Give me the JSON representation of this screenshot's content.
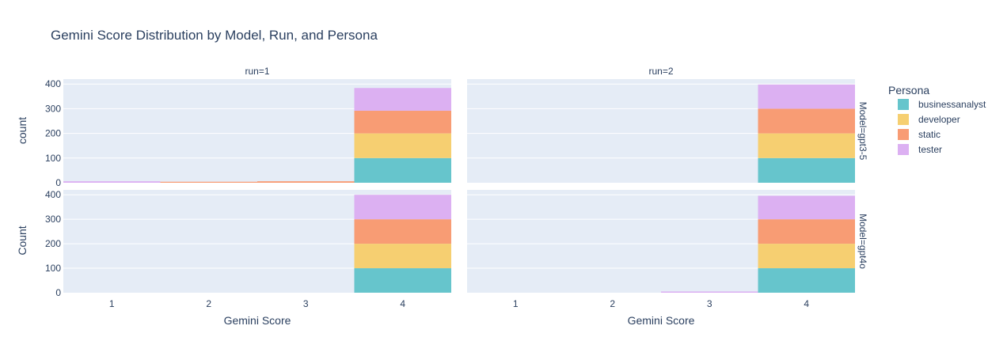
{
  "chart_data": {
    "type": "bar",
    "title": "Gemini Score Distribution by Model, Run, and Persona",
    "xlabel": "Gemini Score",
    "ylabels": [
      "count",
      "Count"
    ],
    "categories": [
      "1",
      "2",
      "3",
      "4"
    ],
    "ylim": [
      0,
      420
    ],
    "yticks": [
      "0",
      "100",
      "200",
      "300",
      "400"
    ],
    "legend": {
      "title": "Persona",
      "placement": "right"
    },
    "series_meta": [
      {
        "name": "businessanalyst",
        "color": "#66c5cc"
      },
      {
        "name": "developer",
        "color": "#f6cf71"
      },
      {
        "name": "static",
        "color": "#f89c74"
      },
      {
        "name": "tester",
        "color": "#dcb0f2"
      }
    ],
    "facets": [
      {
        "col_label": "run=1",
        "row_label": "",
        "model": "gpt3-5",
        "run": 1,
        "values": {
          "businessanalyst": [
            0,
            0,
            0,
            100
          ],
          "developer": [
            0,
            0,
            0,
            100
          ],
          "static": [
            0,
            4,
            6,
            92
          ],
          "tester": [
            6,
            0,
            0,
            92
          ]
        }
      },
      {
        "col_label": "run=2",
        "row_label": "Model=gpt3-5",
        "model": "gpt3-5",
        "run": 2,
        "values": {
          "businessanalyst": [
            0,
            0,
            0,
            100
          ],
          "developer": [
            0,
            0,
            0,
            100
          ],
          "static": [
            0,
            0,
            0,
            100
          ],
          "tester": [
            0,
            0,
            0,
            98
          ]
        }
      },
      {
        "col_label": "",
        "row_label": "",
        "model": "gpt4o",
        "run": 1,
        "values": {
          "businessanalyst": [
            0,
            0,
            0,
            100
          ],
          "developer": [
            0,
            0,
            0,
            100
          ],
          "static": [
            0,
            0,
            0,
            100
          ],
          "tester": [
            0,
            0,
            0,
            100
          ]
        }
      },
      {
        "col_label": "",
        "row_label": "Model=gpt4o",
        "model": "gpt4o",
        "run": 2,
        "values": {
          "businessanalyst": [
            0,
            0,
            0,
            100
          ],
          "developer": [
            0,
            0,
            0,
            100
          ],
          "static": [
            0,
            0,
            0,
            100
          ],
          "tester": [
            0,
            0,
            5,
            96
          ]
        }
      }
    ]
  }
}
